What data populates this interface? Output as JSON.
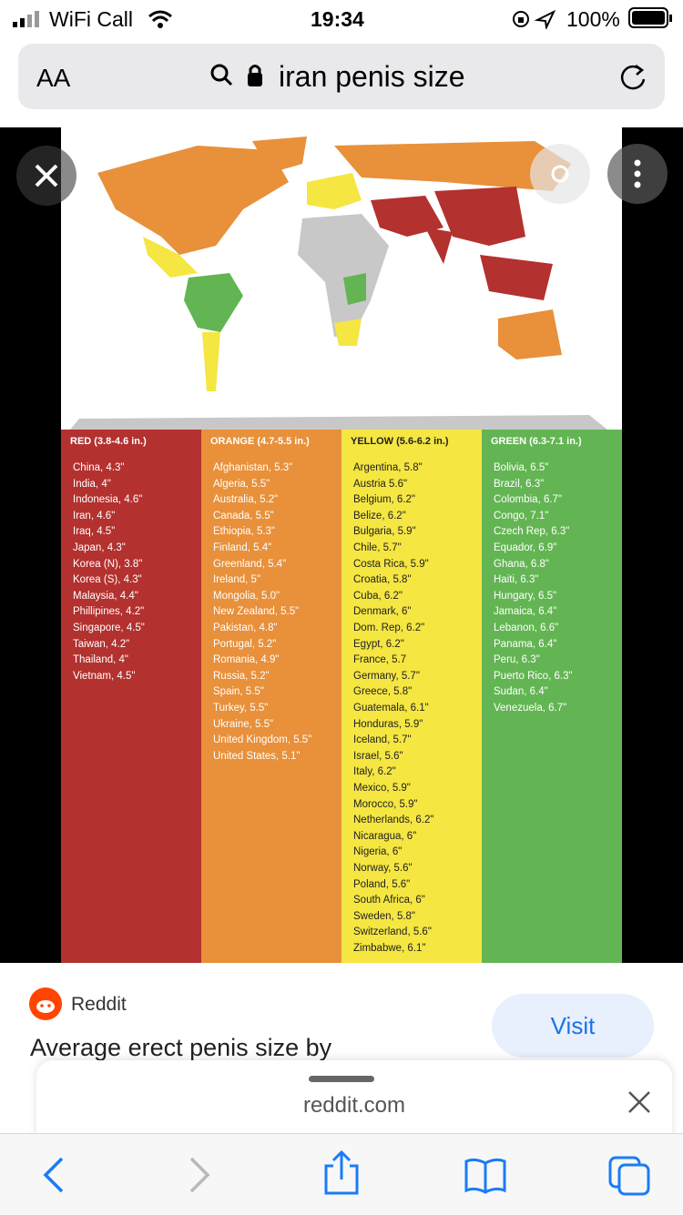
{
  "status_bar": {
    "carrier": "WiFi Call",
    "time": "19:34",
    "battery": "100%"
  },
  "address_bar": {
    "text_size": "AA",
    "query": "iran penis size"
  },
  "image": {
    "columns": [
      {
        "header": "RED (3.8-4.6 in.)",
        "items": [
          "China, 4.3\"",
          "India, 4\"",
          "Indonesia, 4.6\"",
          "Iran, 4.6\"",
          "Iraq, 4.5\"",
          "Japan, 4.3\"",
          "Korea (N), 3.8\"",
          "Korea (S), 4.3\"",
          "Malaysia, 4.4\"",
          "Phillipines, 4.2\"",
          "Singapore, 4.5\"",
          "Taiwan, 4.2\"",
          "Thailand, 4\"",
          "Vietnam, 4.5\""
        ]
      },
      {
        "header": "ORANGE (4.7-5.5 in.)",
        "items": [
          "Afghanistan, 5.3\"",
          "Algeria, 5.5\"",
          "Australia, 5.2\"",
          "Canada, 5.5\"",
          "Ethiopia, 5.3\"",
          "Finland, 5.4\"",
          "Greenland, 5.4\"",
          "Ireland, 5\"",
          "Mongolia, 5.0\"",
          "New Zealand, 5.5\"",
          "Pakistan, 4.8\"",
          "Portugal, 5.2\"",
          "Romania, 4.9\"",
          "Russia, 5.2\"",
          "Spain, 5.5\"",
          "Turkey, 5.5\"",
          "Ukraine, 5.5\"",
          "United Kingdom, 5.5\"",
          "United States, 5.1\""
        ]
      },
      {
        "header": "YELLOW (5.6-6.2 in.)",
        "items": [
          "Argentina, 5.8\"",
          "Austria 5.6\"",
          "Belgium, 6.2\"",
          "Belize, 6.2\"",
          "Bulgaria, 5.9\"",
          "Chile, 5.7\"",
          "Costa Rica, 5.9\"",
          "Croatia, 5.8\"",
          "Cuba, 6.2\"",
          "Denmark, 6\"",
          "Dom. Rep, 6.2\"",
          "Egypt, 6.2\"",
          "France, 5.7",
          "Germany, 5.7\"",
          "Greece, 5.8\"",
          "Guatemala, 6.1\"",
          "Honduras, 5.9\"",
          "Iceland, 5.7\"",
          "Israel, 5.6\"",
          "Italy, 6.2\"",
          "Mexico, 5.9\"",
          "Morocco, 5.9\"",
          "Netherlands, 6.2\"",
          "Nicaragua, 6\"",
          "Nigeria, 6\"",
          "Norway, 5.6\"",
          "Poland, 5.6\"",
          "South Africa, 6\"",
          "Sweden, 5.8\"",
          "Switzerland, 5.6\"",
          "Zimbabwe, 6.1\""
        ]
      },
      {
        "header": "GREEN (6.3-7.1 in.)",
        "items": [
          "Bolivia, 6.5\"",
          "Brazil, 6.3\"",
          "Colombia, 6.7\"",
          "Congo, 7.1\"",
          "Czech Rep, 6.3\"",
          "Equador, 6.9\"",
          "Ghana, 6.8\"",
          "Haiti, 6.3\"",
          "Hungary, 6.5\"",
          "Jamaica, 6.4\"",
          "Lebanon, 6.6\"",
          "Panama, 6.4\"",
          "Peru, 6.3\"",
          "Puerto Rico, 6.3\"",
          "Sudan, 6.4\"",
          "Venezuela, 6.7\""
        ]
      }
    ]
  },
  "result": {
    "source": "Reddit",
    "title": "Average erect penis size by",
    "button": "Visit"
  },
  "sheet": {
    "domain": "reddit.com"
  }
}
